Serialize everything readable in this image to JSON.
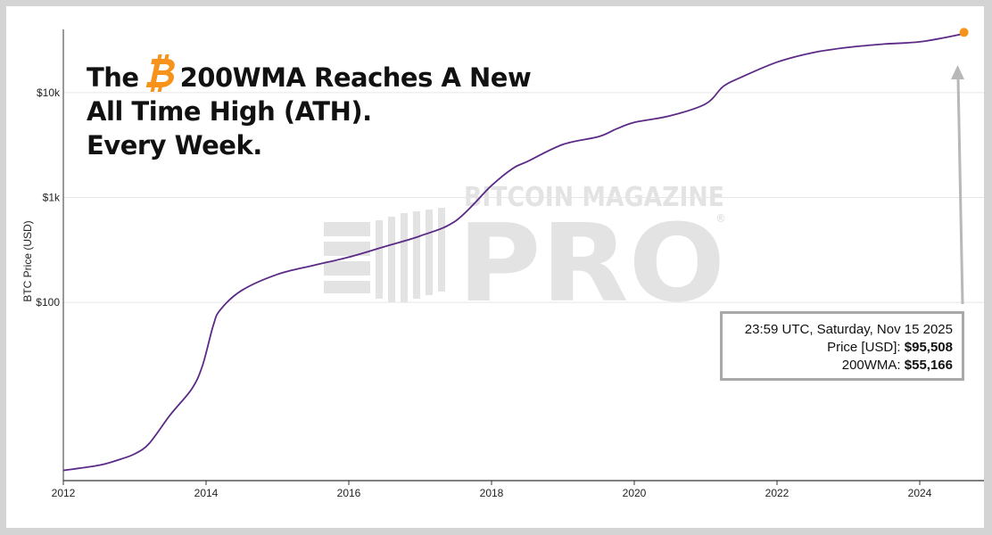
{
  "headline": {
    "line1_before": "The",
    "line1_after": "200WMA Reaches A New",
    "line2": "All Time High (ATH).",
    "line3": "Every Week."
  },
  "watermark": {
    "top": "BITCOIN MAGAZINE",
    "main": "PRO",
    "mark": "®"
  },
  "tooltip": {
    "timestamp": "23:59 UTC, Saturday, Nov 15 2025",
    "price_label": "Price [USD]:",
    "price_value": "$95,508",
    "wma_label": "200WMA:",
    "wma_value": "$55,166"
  },
  "colors": {
    "line": "#5b2a86",
    "marker": "#f7931a",
    "bitcoin_icon": "#f7931a",
    "arrow": "#b8b8b8",
    "grid": "#e6e6e6"
  },
  "chart_data": {
    "type": "line",
    "title": "",
    "xlabel": "",
    "ylabel": "BTC Price (USD)",
    "y_scale": "log",
    "ylim": [
      2,
      40000
    ],
    "xlim": [
      2012.0,
      2024.75
    ],
    "x_ticks": [
      {
        "value": 2012,
        "label": "2012"
      },
      {
        "value": 2014,
        "label": "2014"
      },
      {
        "value": 2016,
        "label": "2016"
      },
      {
        "value": 2018,
        "label": "2018"
      },
      {
        "value": 2020,
        "label": "2020"
      },
      {
        "value": 2022,
        "label": "2022"
      },
      {
        "value": 2024,
        "label": "2024"
      }
    ],
    "y_ticks": [
      {
        "value": 100,
        "label": "$100"
      },
      {
        "value": 1000,
        "label": "$1k"
      },
      {
        "value": 10000,
        "label": "$10k"
      }
    ],
    "grid": true,
    "series": [
      {
        "x": [
          2012.0,
          2012.5,
          2012.8,
          2013.0,
          2013.2,
          2013.5,
          2013.8,
          2013.95,
          2014.1,
          2014.2,
          2014.5,
          2015.0,
          2015.5,
          2016.0,
          2016.5,
          2017.0,
          2017.5,
          2018.0,
          2018.3,
          2018.5,
          2019.0,
          2019.5,
          2019.75,
          2020.0,
          2020.5,
          2021.0,
          2021.25,
          2021.5,
          2022.0,
          2022.5,
          2023.0,
          2023.5,
          2024.0,
          2024.5,
          2024.6
        ],
        "values": [
          2.5,
          2.8,
          3.2,
          3.6,
          4.5,
          8.5,
          15,
          25,
          60,
          85,
          130,
          185,
          225,
          270,
          340,
          430,
          600,
          1300,
          1900,
          2200,
          3200,
          3800,
          4500,
          5200,
          6000,
          7800,
          11500,
          14000,
          19500,
          24000,
          27000,
          29000,
          30500,
          35000,
          36500
        ]
      }
    ],
    "highlight_point": {
      "x": 2024.62,
      "y": 37500
    }
  }
}
